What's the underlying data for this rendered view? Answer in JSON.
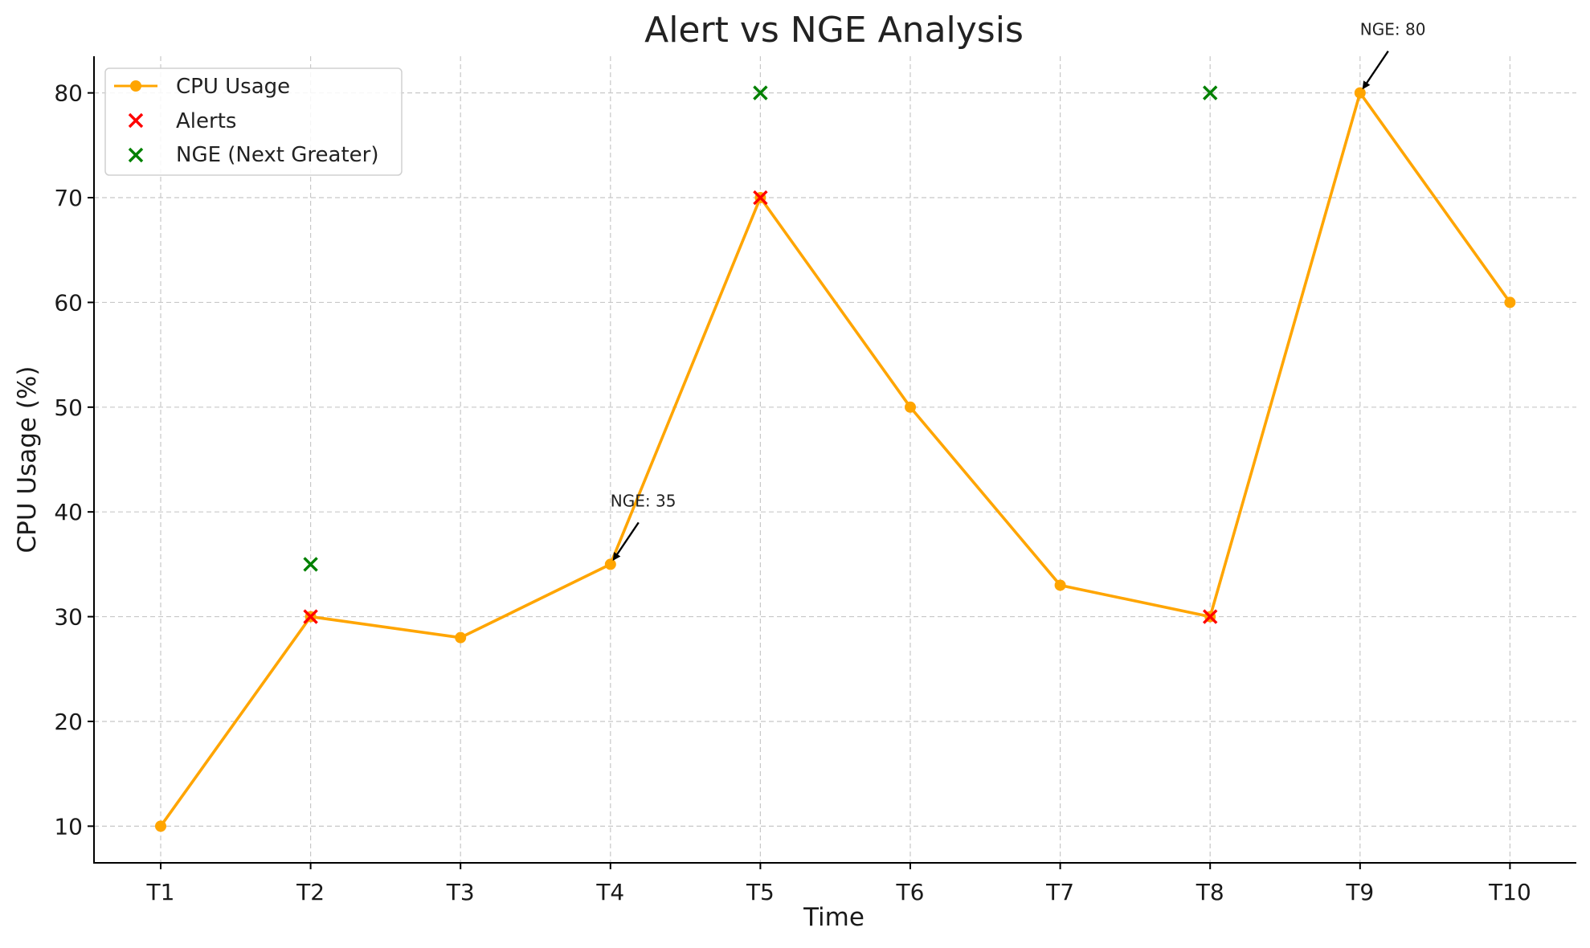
{
  "chart_data": {
    "type": "line",
    "title": "Alert vs NGE Analysis",
    "xlabel": "Time",
    "ylabel": "CPU Usage (%)",
    "categories": [
      "T1",
      "T2",
      "T3",
      "T4",
      "T5",
      "T6",
      "T7",
      "T8",
      "T9",
      "T10"
    ],
    "y_ticks": [
      10,
      20,
      30,
      40,
      50,
      60,
      70,
      80
    ],
    "ylim": [
      6.5,
      83.5
    ],
    "grid": true,
    "legend_position": "top-left",
    "series": [
      {
        "name": "CPU Usage",
        "kind": "line",
        "marker": "circle",
        "color": "#FFA500",
        "values": [
          10,
          30,
          28,
          35,
          70,
          50,
          33,
          30,
          80,
          60
        ]
      },
      {
        "name": "Alerts",
        "kind": "scatter",
        "marker": "x",
        "color": "#FF0000",
        "points": [
          {
            "x": "T2",
            "y": 30
          },
          {
            "x": "T5",
            "y": 70
          },
          {
            "x": "T8",
            "y": 30
          }
        ]
      },
      {
        "name": "NGE (Next Greater)",
        "kind": "scatter",
        "marker": "x",
        "color": "#008000",
        "points": [
          {
            "x": "T2",
            "y": 35
          },
          {
            "x": "T5",
            "y": 80
          },
          {
            "x": "T8",
            "y": 80
          }
        ]
      }
    ],
    "annotations": [
      {
        "text": "NGE: 35",
        "x": "T4",
        "y": 35
      },
      {
        "text": "NGE: 80",
        "x": "T9",
        "y": 80
      }
    ]
  }
}
